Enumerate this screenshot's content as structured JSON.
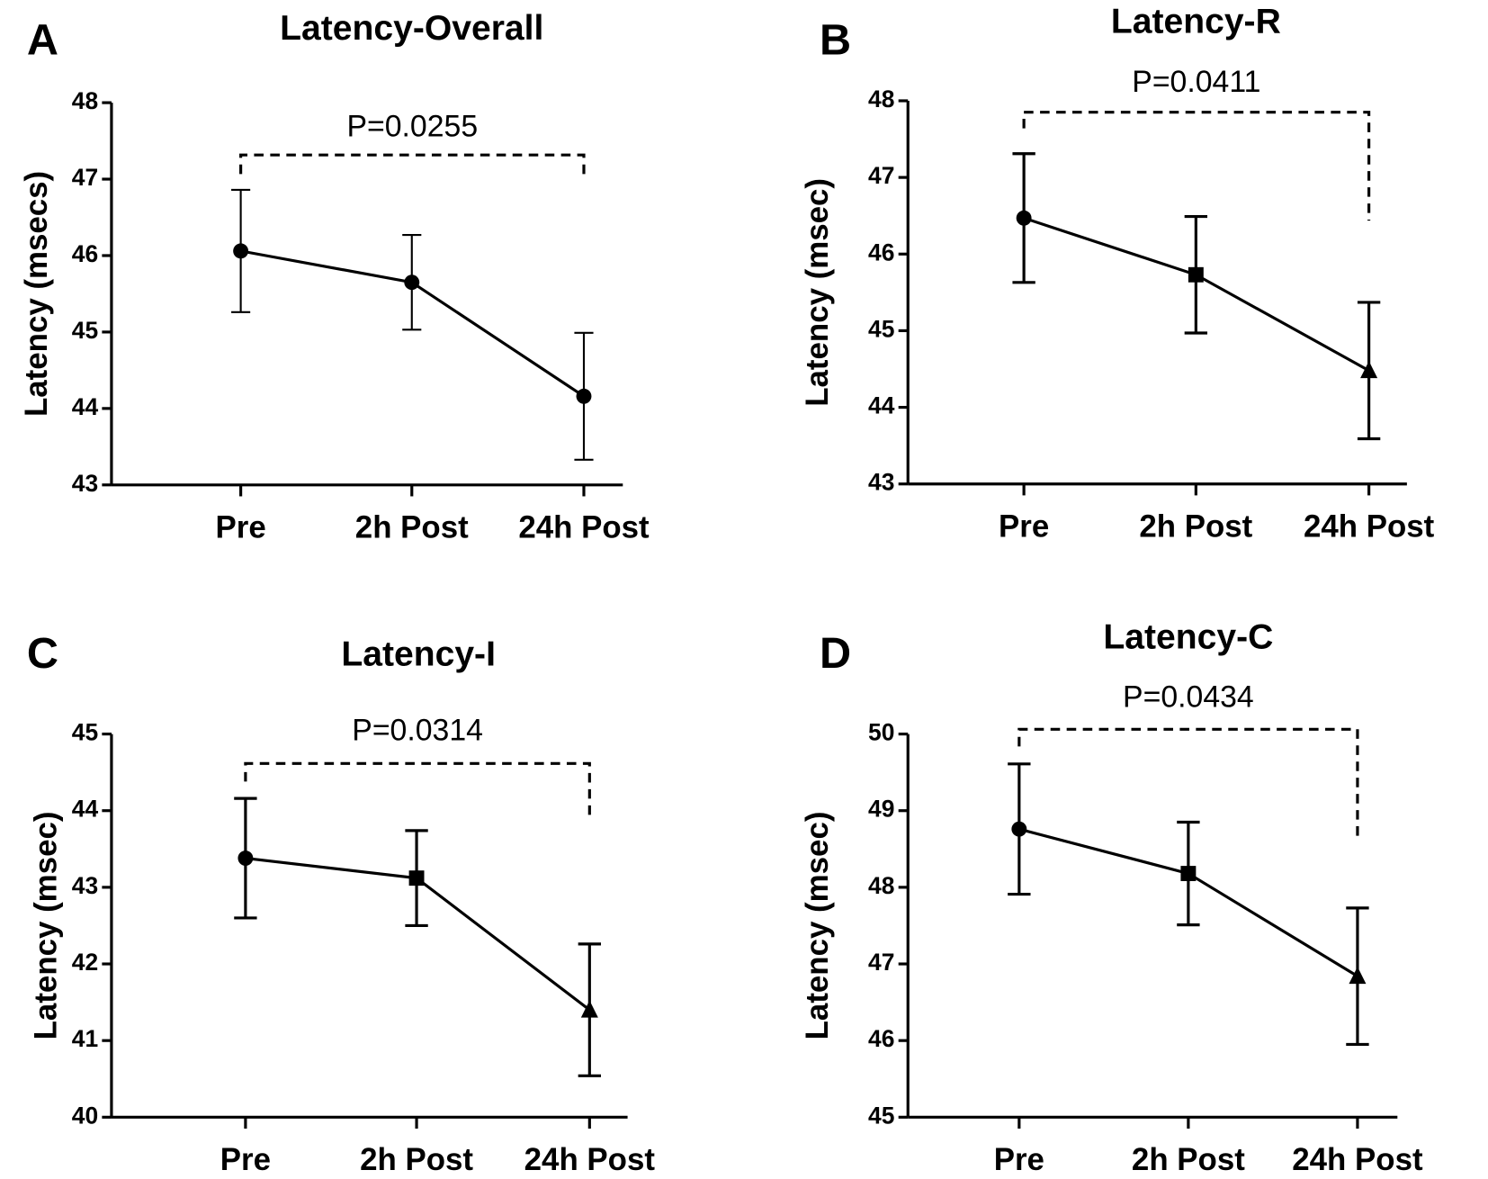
{
  "chart_data": [
    {
      "type": "line",
      "panel_label": "A",
      "title": "Latency-Overall",
      "y_label": "Latency (msecs)",
      "categories": [
        "Pre",
        "2h Post",
        "24h Post"
      ],
      "values": [
        46.06,
        45.65,
        44.16
      ],
      "errors": [
        0.8,
        0.62,
        0.83
      ],
      "color": "#000000",
      "markers": [
        "circle",
        "circle",
        "circle"
      ],
      "ylim": [
        43,
        48
      ],
      "yticks": [
        43,
        44,
        45,
        46,
        47,
        48
      ],
      "annotation": "P=0.0255"
    },
    {
      "type": "line",
      "panel_label": "B",
      "title": "Latency-R",
      "y_label": "Latency (msec)",
      "categories": [
        "Pre",
        "2h Post",
        "24h Post"
      ],
      "values": [
        46.47,
        45.73,
        44.48
      ],
      "errors": [
        0.84,
        0.76,
        0.89
      ],
      "color": "#000000",
      "markers": [
        "circle",
        "square",
        "triangle"
      ],
      "ylim": [
        43,
        48
      ],
      "yticks": [
        43,
        44,
        45,
        46,
        47,
        48
      ],
      "annotation": "P=0.0411"
    },
    {
      "type": "line",
      "panel_label": "C",
      "title": "Latency-I",
      "y_label": "Latency (msec)",
      "categories": [
        "Pre",
        "2h Post",
        "24h Post"
      ],
      "values": [
        43.38,
        43.12,
        41.4
      ],
      "errors": [
        0.78,
        0.62,
        0.86
      ],
      "color": "#000000",
      "markers": [
        "circle",
        "square",
        "triangle"
      ],
      "ylim": [
        40,
        45
      ],
      "yticks": [
        40,
        41,
        42,
        43,
        44,
        45
      ],
      "annotation": "P=0.0314"
    },
    {
      "type": "line",
      "panel_label": "D",
      "title": "Latency-C",
      "y_label": "Latency (msec)",
      "categories": [
        "Pre",
        "2h Post",
        "24h Post"
      ],
      "values": [
        48.76,
        48.18,
        46.84
      ],
      "errors": [
        0.85,
        0.67,
        0.89
      ],
      "color": "#000000",
      "markers": [
        "circle",
        "square",
        "triangle"
      ],
      "ylim": [
        45,
        50
      ],
      "yticks": [
        45,
        46,
        47,
        48,
        49,
        50
      ],
      "annotation": "P=0.0434"
    }
  ]
}
